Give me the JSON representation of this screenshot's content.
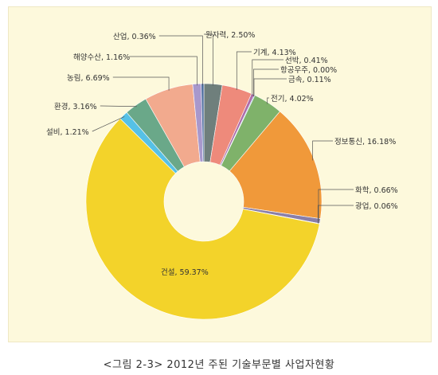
{
  "chart_data": {
    "type": "pie",
    "donut": true,
    "start_angle_deg": 0,
    "direction": "clockwise",
    "slices": [
      {
        "label": "원자력, 2.50%",
        "name": "원자력",
        "value": 2.5,
        "color": "#6f7f7c"
      },
      {
        "label": "기계, 4.13%",
        "name": "기계",
        "value": 4.13,
        "color": "#ee8a7b"
      },
      {
        "label": "선박, 0.41%",
        "name": "선박",
        "value": 0.41,
        "color": "#b06aa8"
      },
      {
        "label": "항공우주, 0.00%",
        "name": "항공우주",
        "value": 0.0,
        "color": "#7f8fc0"
      },
      {
        "label": "금속, 0.11%",
        "name": "금속",
        "value": 0.11,
        "color": "#5f9ad0"
      },
      {
        "label": "전기, 4.02%",
        "name": "전기",
        "value": 4.02,
        "color": "#7fb26a"
      },
      {
        "label": "정보통신, 16.18%",
        "name": "정보통신",
        "value": 16.18,
        "color": "#f0993a"
      },
      {
        "label": "화학, 0.66%",
        "name": "화학",
        "value": 0.66,
        "color": "#8a7fa8"
      },
      {
        "label": "광업, 0.06%",
        "name": "광업",
        "value": 0.06,
        "color": "#a79f8a"
      },
      {
        "label": "건설, 59.37%",
        "name": "건설",
        "value": 59.37,
        "color": "#f3d32a"
      },
      {
        "label": "설비, 1.21%",
        "name": "설비",
        "value": 1.21,
        "color": "#56c1e6"
      },
      {
        "label": "환경, 3.16%",
        "name": "환경",
        "value": 3.16,
        "color": "#6aa889"
      },
      {
        "label": "농림, 6.69%",
        "name": "농림",
        "value": 6.69,
        "color": "#f2aa8e"
      },
      {
        "label": "해양수산, 1.16%",
        "name": "해양수산",
        "value": 1.16,
        "color": "#a898cc"
      },
      {
        "label": "산업, 0.36%",
        "name": "산업",
        "value": 0.36,
        "color": "#4f6fa0"
      }
    ]
  },
  "caption": "<그림 2-3> 2012년 주된 기술부문별 사업자현황"
}
